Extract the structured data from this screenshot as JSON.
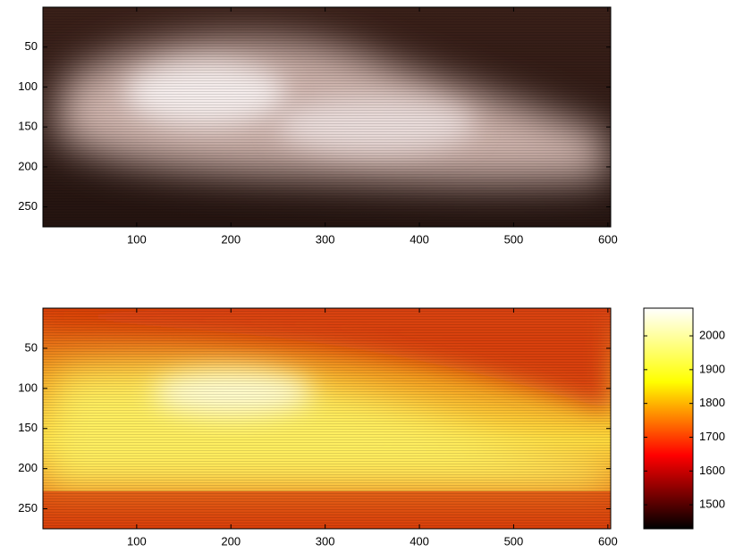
{
  "chart_data": [
    {
      "type": "image",
      "xlim": [
        0.5,
        603
      ],
      "ylim": [
        0,
        275
      ],
      "y_reversed": true,
      "xticks": [
        100,
        200,
        300,
        400,
        500,
        600
      ],
      "yticks": [
        50,
        100,
        150,
        200,
        250
      ]
    },
    {
      "type": "heatmap",
      "xlim": [
        0.5,
        603
      ],
      "ylim": [
        0,
        275
      ],
      "y_reversed": true,
      "xticks": [
        100,
        200,
        300,
        400,
        500,
        600
      ],
      "yticks": [
        50,
        100,
        150,
        200,
        250
      ],
      "colorbar": {
        "clim": [
          1429,
          2082
        ],
        "ticks": [
          1500,
          1600,
          1700,
          1800,
          1900,
          2000
        ],
        "colormap": "hot"
      }
    }
  ]
}
